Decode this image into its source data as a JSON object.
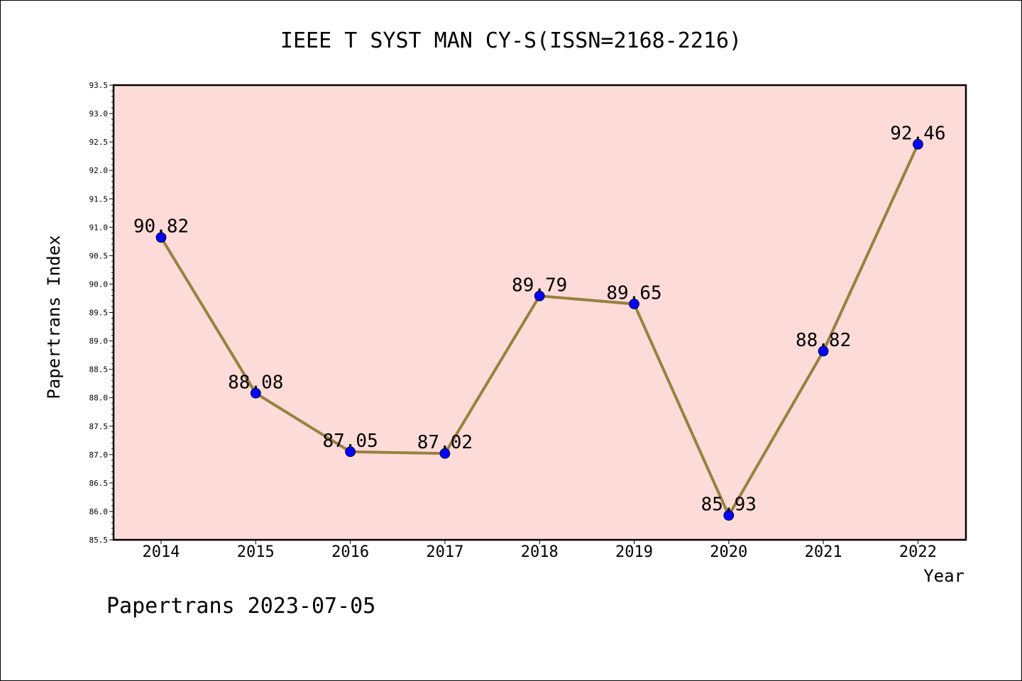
{
  "chart_data": {
    "type": "line",
    "title": "IEEE T SYST MAN CY-S(ISSN=2168-2216)",
    "xlabel": "Year",
    "ylabel": "Papertrans Index",
    "categories": [
      "2014",
      "2015",
      "2016",
      "2017",
      "2018",
      "2019",
      "2020",
      "2021",
      "2022"
    ],
    "values": [
      90.82,
      88.08,
      87.05,
      87.02,
      89.79,
      89.65,
      85.93,
      88.82,
      92.46
    ],
    "data_labels": [
      "90.82",
      "88.08",
      "87.05",
      "87.02",
      "89.79",
      "89.65",
      "85.93",
      "88.82",
      "92.46"
    ],
    "ylim": [
      85.5,
      93.5
    ],
    "yticks": [
      "85.5",
      "86.0",
      "86.5",
      "87.0",
      "87.5",
      "88.0",
      "88.5",
      "89.0",
      "89.5",
      "90.0",
      "90.5",
      "91.0",
      "91.5",
      "92.0",
      "92.5",
      "93.0",
      "93.5"
    ],
    "grid": false,
    "colors": {
      "plot_background": "#fddbd8",
      "line": "#9a8040",
      "marker": "#0000ff"
    }
  },
  "footer": "Papertrans 2023-07-05"
}
